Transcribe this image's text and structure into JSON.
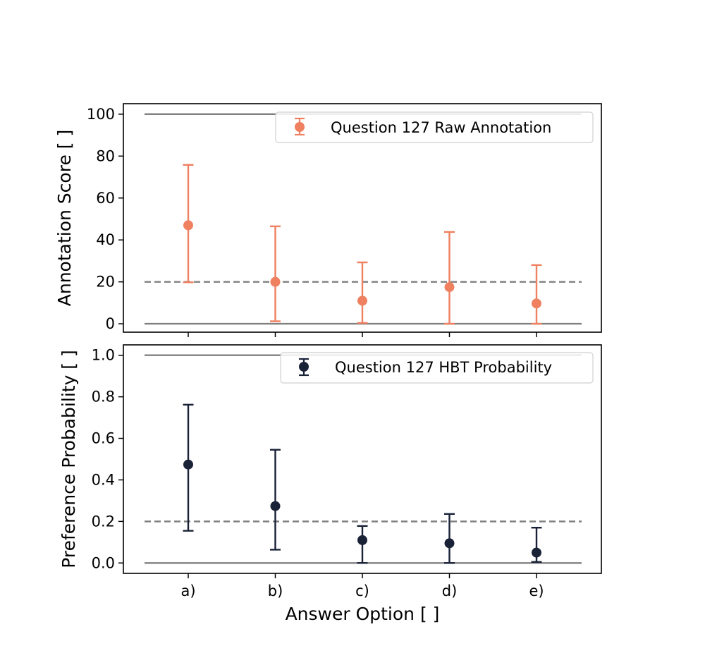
{
  "chart_data": [
    {
      "type": "scatter",
      "ylabel": "Annotation Score [ ]",
      "ylim": [
        -4,
        105
      ],
      "yticks": [
        "0",
        "20",
        "40",
        "60",
        "80",
        "100"
      ],
      "categories": [
        "a)",
        "b)",
        "c)",
        "d)",
        "e)"
      ],
      "series": [
        {
          "name": "Question 127 Raw Annotation",
          "color": "#ef8060",
          "values": [
            47,
            20,
            11,
            17.5,
            9.7
          ],
          "err_low": [
            19.8,
            1.2,
            0.4,
            0,
            0
          ],
          "err_high": [
            75.8,
            46.5,
            29.3,
            43.8,
            28
          ]
        }
      ],
      "reference_lines": [
        {
          "y": 100,
          "style": "solid",
          "color": "#808080"
        },
        {
          "y": 20,
          "style": "dashed",
          "color": "#808080"
        },
        {
          "y": 0,
          "style": "solid",
          "color": "#808080"
        }
      ],
      "legend_position": "top-right",
      "grid": false
    },
    {
      "type": "scatter",
      "ylabel": "Preference Probability [ ]",
      "xlabel": "Answer Option [ ]",
      "ylim": [
        -0.05,
        1.05
      ],
      "yticks": [
        "0.0",
        "0.2",
        "0.4",
        "0.6",
        "0.8",
        "1.0"
      ],
      "categories": [
        "a)",
        "b)",
        "c)",
        "d)",
        "e)"
      ],
      "series": [
        {
          "name": "Question 127 HBT Probability",
          "color": "#1a2238",
          "values": [
            0.474,
            0.274,
            0.11,
            0.095,
            0.05
          ],
          "err_low": [
            0.155,
            0.064,
            0,
            0,
            0.005
          ],
          "err_high": [
            0.762,
            0.545,
            0.178,
            0.236,
            0.17
          ]
        }
      ],
      "reference_lines": [
        {
          "y": 1.0,
          "style": "solid",
          "color": "#808080"
        },
        {
          "y": 0.2,
          "style": "dashed",
          "color": "#808080"
        },
        {
          "y": 0.0,
          "style": "solid",
          "color": "#808080"
        }
      ],
      "legend_position": "top-right",
      "grid": false
    }
  ]
}
